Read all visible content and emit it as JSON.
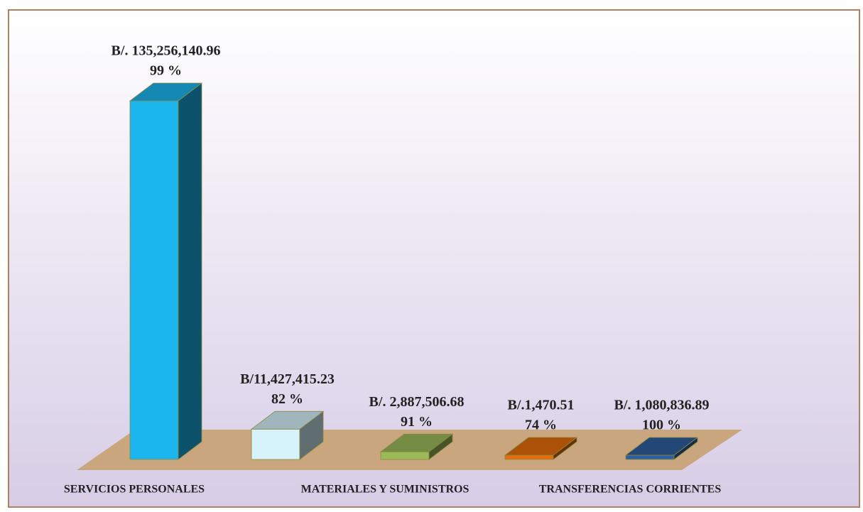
{
  "chart_data": {
    "type": "bar3d",
    "categories": [
      "SERVICIOS PERSONALES",
      null,
      "MATERIALES Y SUMINISTROS",
      null,
      "TRANSFERENCIAS CORRIENTES"
    ],
    "values": [
      135256140.96,
      11427415.23,
      2887506.68,
      1470.51,
      1080836.89
    ],
    "value_labels": [
      "B/. 135,256,140.96",
      "B/11,427,415.23",
      "B/. 2,887,506.68",
      "B/.1,470.51",
      "B/. 1,080,836.89"
    ],
    "percentages": [
      99,
      82,
      91,
      74,
      100
    ],
    "percentage_labels": [
      "99 %",
      "82 %",
      "91 %",
      "74 %",
      "100 %"
    ],
    "colors": [
      "#1cb6ee",
      "#d6f3fb",
      "#9bbb59",
      "#e46c0a",
      "#2f5f9f"
    ]
  }
}
